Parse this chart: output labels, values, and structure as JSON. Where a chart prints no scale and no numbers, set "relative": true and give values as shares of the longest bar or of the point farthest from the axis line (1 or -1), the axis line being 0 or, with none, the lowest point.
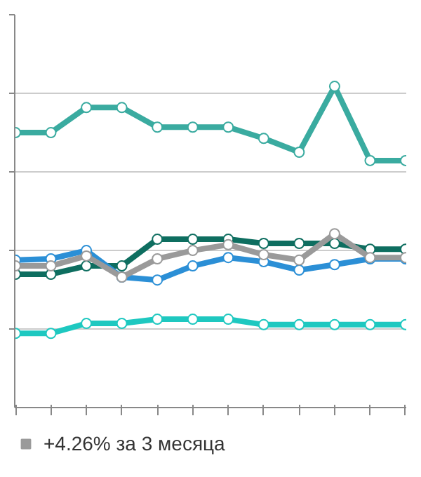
{
  "chart_data": {
    "type": "line",
    "relative": true,
    "categories": [
      null,
      null,
      null,
      null,
      null,
      null,
      null,
      null,
      null,
      null,
      null,
      null
    ],
    "series": [
      {
        "color": "#3aaba0",
        "values": [
          0.856,
          0.856,
          0.934,
          0.934,
          0.873,
          0.873,
          0.873,
          0.838,
          0.795,
          1,
          0.769,
          0.769
        ]
      },
      {
        "color": "#0e6e60",
        "values": [
          0.415,
          0.415,
          0.441,
          0.441,
          0.524,
          0.524,
          0.524,
          0.511,
          0.511,
          0.511,
          0.493,
          0.493
        ]
      },
      {
        "color": "#2b8fd6",
        "values": [
          0.459,
          0.463,
          0.489,
          0.406,
          0.397,
          0.441,
          0.467,
          0.454,
          0.428,
          0.445,
          0.463,
          0.463
        ]
      },
      {
        "name": "+4.26% за 3 месяца",
        "color": "#9a9a9a",
        "values": [
          0.441,
          0.441,
          0.472,
          0.406,
          0.463,
          0.489,
          0.507,
          0.476,
          0.459,
          0.541,
          0.467,
          0.467
        ]
      },
      {
        "color": "#1ec8c0",
        "values": [
          0.231,
          0.231,
          0.262,
          0.262,
          0.275,
          0.275,
          0.275,
          0.258,
          0.258,
          0.258,
          0.258,
          0.258
        ]
      }
    ],
    "grid": "y",
    "legend": "bottom",
    "marker": "circle",
    "line_style": "solid"
  }
}
